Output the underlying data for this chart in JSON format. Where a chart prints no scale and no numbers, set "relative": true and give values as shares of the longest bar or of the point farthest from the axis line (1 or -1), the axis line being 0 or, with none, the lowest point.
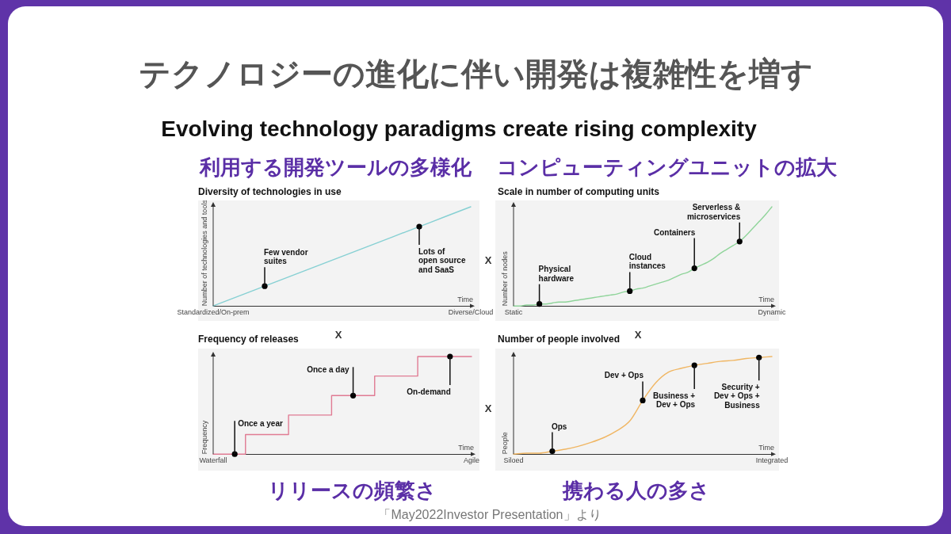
{
  "chart_data": [
    {
      "type": "other",
      "title": "テクノロジーの進化に伴い開発は複雑性を増す",
      "subtitle": "Evolving technology paradigms create rising complexity",
      "annotations": [
        "X",
        "X",
        "X",
        "X",
        "「May2022Investor Presentation」より"
      ]
    },
    {
      "type": "line",
      "title": "Diversity of technologies in use",
      "subtitle": "利用する開発ツールの多様化",
      "xlabel": "Time",
      "ylabel": "Number of technologies and tools",
      "relative": true,
      "categories": [
        "Standardized/On-prem",
        null,
        null,
        null,
        null,
        null,
        null,
        null,
        null,
        null,
        "Diverse/Cloud"
      ],
      "series": [
        {
          "color": "#86d0d3",
          "values": [
            0,
            0.1,
            0.2,
            0.3,
            0.4,
            0.5,
            0.6,
            0.7,
            0.8,
            0.9,
            1
          ]
        },
        {
          "type": "scatter",
          "color": "#000000",
          "values": [
            null,
            null,
            0.2,
            null,
            null,
            null,
            null,
            null,
            0.8,
            null,
            null
          ]
        }
      ],
      "annotations": [
        "Few vendor suites",
        "Lots of open source and SaaS"
      ]
    },
    {
      "type": "line",
      "title": "Scale in number of computing units",
      "subtitle": "コンピューティングユニットの拡大",
      "xlabel": "Time",
      "ylabel": "Number of nodes",
      "relative": true,
      "categories": [
        "Static",
        null,
        null,
        null,
        null,
        null,
        null,
        null,
        null,
        null,
        null,
        null,
        null,
        null,
        null,
        null,
        null,
        null,
        null,
        null,
        null,
        null,
        null,
        null,
        null,
        null,
        null,
        null,
        null,
        null,
        null,
        null,
        null,
        null,
        null,
        null,
        null,
        null,
        null,
        null,
        "Dynamic"
      ],
      "series": [
        {
          "color": "#8fd49a",
          "values": [
            0,
            0,
            0.01,
            0.01,
            0.02,
            0.02,
            0.03,
            0.04,
            0.04,
            0.05,
            0.06,
            0.07,
            0.08,
            0.09,
            0.1,
            0.11,
            0.12,
            0.14,
            0.15,
            0.17,
            0.18,
            0.2,
            0.22,
            0.24,
            0.26,
            0.29,
            0.32,
            0.34,
            0.38,
            0.41,
            0.44,
            0.48,
            0.53,
            0.57,
            0.61,
            0.65,
            0.71,
            0.78,
            0.85,
            0.92,
            1
          ]
        },
        {
          "type": "scatter",
          "color": "#000000",
          "values": [
            null,
            null,
            null,
            null,
            0.02,
            null,
            null,
            null,
            null,
            null,
            null,
            null,
            null,
            null,
            null,
            null,
            null,
            null,
            0.15,
            null,
            null,
            null,
            null,
            null,
            null,
            null,
            null,
            null,
            0.38,
            null,
            null,
            null,
            null,
            null,
            null,
            0.65,
            null,
            null,
            null,
            null,
            null
          ]
        }
      ],
      "annotations": [
        "Physical hardware",
        "Cloud instances",
        "Containers",
        "Serverless & microservices"
      ]
    },
    {
      "type": "step",
      "title": "Frequency of releases",
      "subtitle": "リリースの頻繁さ",
      "xlabel": "Time",
      "ylabel": "Frequency",
      "relative": true,
      "categories": [
        "Waterfall",
        null,
        null,
        null,
        null,
        null,
        null,
        null,
        null,
        null,
        null,
        null,
        null,
        null,
        null,
        null,
        null,
        null,
        null,
        null,
        null,
        null,
        null,
        null,
        "Agile"
      ],
      "series": [
        {
          "color": "#e07b93",
          "values": [
            0,
            0,
            0,
            0,
            0.2,
            0.2,
            0.2,
            0.2,
            0.4,
            0.4,
            0.4,
            0.4,
            0.6,
            0.6,
            0.6,
            0.6,
            0.8,
            0.8,
            0.8,
            0.8,
            1,
            1,
            1,
            1,
            1
          ]
        },
        {
          "type": "scatter",
          "color": "#000000",
          "values": [
            null,
            null,
            0,
            null,
            null,
            null,
            null,
            null,
            null,
            null,
            null,
            null,
            null,
            0.6,
            null,
            null,
            null,
            null,
            null,
            null,
            null,
            null,
            1,
            null,
            null
          ]
        }
      ],
      "annotations": [
        "Once a year",
        "Once a day",
        "On-demand"
      ]
    },
    {
      "type": "line",
      "title": "Number of people involved",
      "subtitle": "携わる人の多さ",
      "xlabel": "Time",
      "ylabel": "People",
      "relative": true,
      "categories": [
        "Siloed",
        null,
        null,
        null,
        null,
        null,
        null,
        null,
        null,
        null,
        null,
        null,
        null,
        null,
        null,
        null,
        null,
        null,
        null,
        null,
        "Integrated"
      ],
      "series": [
        {
          "color": "#f0b663",
          "values": [
            0,
            0.01,
            0.01,
            0.03,
            0.05,
            0.08,
            0.12,
            0.17,
            0.24,
            0.34,
            0.55,
            0.73,
            0.84,
            0.88,
            0.91,
            0.93,
            0.95,
            0.96,
            0.98,
            0.99,
            1
          ]
        },
        {
          "type": "scatter",
          "color": "#000000",
          "values": [
            null,
            null,
            null,
            0.03,
            null,
            null,
            null,
            null,
            null,
            null,
            0.55,
            null,
            null,
            null,
            0.91,
            null,
            null,
            null,
            null,
            0.99,
            null
          ]
        }
      ],
      "annotations": [
        "Ops",
        "Dev + Ops",
        "Business + Dev + Ops",
        "Security + Dev + Ops + Business"
      ]
    }
  ]
}
